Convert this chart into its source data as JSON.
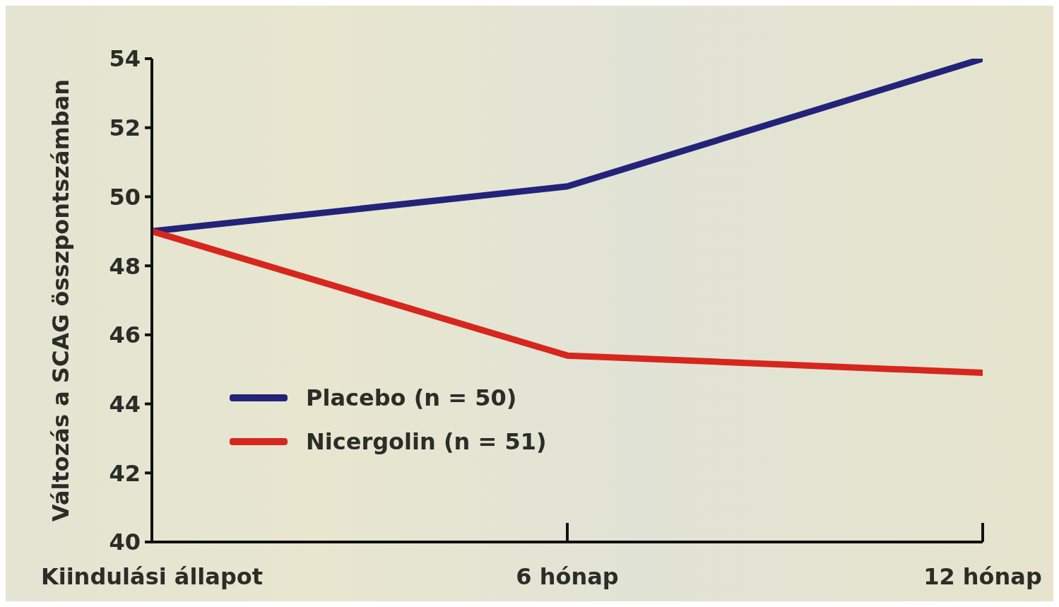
{
  "chart_data": {
    "type": "line",
    "ylabel": "Változás a SCAG összpontszámban",
    "categories": [
      "Kiindulási állapot",
      "6 hónap",
      "12 hónap"
    ],
    "series": [
      {
        "name": "Placebo (n = 50)",
        "color": "#23237a",
        "values": [
          49,
          50.3,
          54
        ]
      },
      {
        "name": "Nicergolin (n = 51)",
        "color": "#d6261e",
        "values": [
          49,
          45.4,
          44.9
        ]
      }
    ],
    "ylim": [
      40,
      54
    ],
    "yticks": [
      40,
      42,
      44,
      46,
      48,
      50,
      52,
      54
    ],
    "grid": false,
    "legend": "bottom left",
    "marker": "none",
    "line_style": "solid"
  }
}
